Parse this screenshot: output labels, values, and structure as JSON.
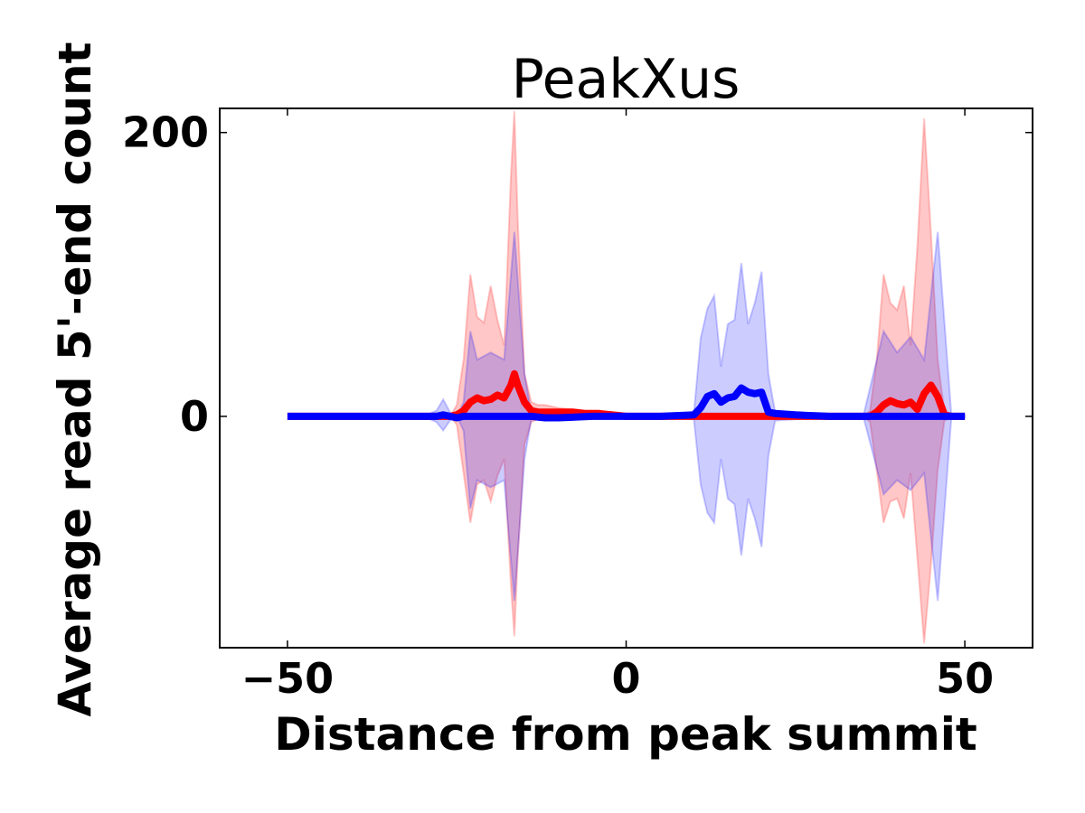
{
  "chart_data": {
    "type": "line",
    "title": "PeakXus",
    "xlabel": "Distance from peak summit",
    "ylabel": "Average read 5'-end count",
    "xlim": [
      -60,
      60
    ],
    "ylim": [
      -163,
      217
    ],
    "xticks": [
      -50,
      0,
      50
    ],
    "xtick_labels": [
      "−50",
      "0",
      "50"
    ],
    "yticks": [
      0,
      200
    ],
    "ytick_labels": [
      "0",
      "200"
    ],
    "grid": false,
    "legend": null,
    "series": [
      {
        "name": "forward strand (red)",
        "color": "#ff0000",
        "band_color": "#ff0000",
        "band_alpha": 0.22,
        "x": [
          -50,
          -40,
          -30,
          -26,
          -25,
          -24,
          -23,
          -22,
          -21,
          -20,
          -19,
          -18,
          -17,
          -16.5,
          -16,
          -15,
          -14,
          -13,
          -12,
          -10,
          -8,
          -6,
          -4,
          -2,
          0,
          5,
          10,
          12,
          15,
          20,
          25,
          30,
          35,
          36,
          37,
          38,
          39,
          40,
          41,
          42,
          43,
          44,
          45,
          46,
          47,
          48,
          50
        ],
        "mean": [
          0,
          0,
          0,
          0,
          1,
          4,
          10,
          13,
          11,
          12,
          15,
          13,
          22,
          30,
          22,
          10,
          4,
          3,
          3,
          3,
          3,
          2,
          2,
          1,
          0,
          0,
          0,
          0,
          0,
          0,
          0,
          0,
          0,
          0,
          3,
          8,
          11,
          9,
          8,
          10,
          5,
          16,
          22,
          14,
          1,
          0,
          0
        ],
        "upper": [
          0,
          0,
          0,
          0,
          8,
          40,
          100,
          70,
          66,
          92,
          68,
          50,
          170,
          215,
          140,
          30,
          10,
          8,
          8,
          6,
          5,
          4,
          4,
          2,
          0,
          0,
          0,
          0,
          0,
          0,
          0,
          0,
          0,
          4,
          40,
          100,
          80,
          75,
          92,
          50,
          120,
          210,
          130,
          40,
          3,
          1,
          0
        ],
        "lower": [
          0,
          0,
          0,
          0,
          -6,
          -40,
          -75,
          -48,
          -45,
          -60,
          -42,
          -30,
          -120,
          -155,
          -100,
          -20,
          -4,
          -2,
          -2,
          -1,
          0,
          0,
          0,
          0,
          0,
          0,
          0,
          0,
          0,
          0,
          0,
          0,
          0,
          -4,
          -38,
          -75,
          -60,
          -58,
          -72,
          -40,
          -100,
          -160,
          -105,
          -38,
          -3,
          -1,
          0
        ]
      },
      {
        "name": "reverse strand (blue)",
        "color": "#0000ff",
        "band_color": "#0000ff",
        "band_alpha": 0.2,
        "x": [
          -50,
          -40,
          -30,
          -28,
          -27,
          -26,
          -25,
          -24,
          -23,
          -22,
          -20,
          -18,
          -16.5,
          -15,
          -14,
          -12,
          -10,
          -5,
          0,
          5,
          10,
          11,
          12,
          13,
          14,
          15,
          16,
          17,
          18,
          19,
          20,
          21,
          22,
          25,
          30,
          35,
          38,
          40,
          42,
          44,
          46,
          48,
          50
        ],
        "mean": [
          0,
          0,
          0,
          0,
          1,
          0,
          -1,
          0,
          0,
          0,
          0,
          0,
          0,
          0,
          0,
          -1,
          -1,
          0,
          0,
          0,
          1,
          6,
          14,
          16,
          10,
          13,
          14,
          20,
          17,
          16,
          17,
          3,
          2,
          1,
          0,
          0,
          0,
          0,
          0,
          0,
          0,
          0,
          0
        ],
        "upper": [
          0,
          0,
          0,
          4,
          12,
          3,
          0,
          10,
          60,
          40,
          45,
          40,
          130,
          30,
          2,
          1,
          1,
          0,
          0,
          0,
          2,
          55,
          76,
          85,
          35,
          65,
          68,
          108,
          65,
          80,
          102,
          30,
          3,
          2,
          0,
          0,
          60,
          45,
          56,
          40,
          130,
          2,
          1
        ],
        "lower": [
          0,
          0,
          0,
          -4,
          -10,
          -3,
          0,
          -10,
          -65,
          -45,
          -50,
          -45,
          -130,
          -30,
          -2,
          -2,
          -2,
          0,
          0,
          0,
          -2,
          -48,
          -68,
          -75,
          -30,
          -58,
          -62,
          -98,
          -58,
          -72,
          -92,
          -28,
          -3,
          -2,
          0,
          0,
          -55,
          -45,
          -52,
          -40,
          -130,
          -2,
          -1
        ]
      }
    ]
  }
}
